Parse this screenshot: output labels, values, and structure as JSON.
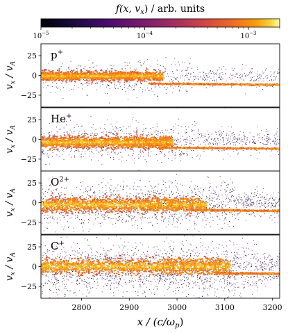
{
  "colorbar": {
    "label": "f(x, v_x) /  arb. units",
    "label_main": "f",
    "label_args": "(x, v",
    "label_sub": "x",
    "label_tail": ") /  arb. units",
    "scale": "log",
    "range": [
      1e-05,
      0.002
    ],
    "colormap": "inferno",
    "ticks": [
      {
        "value": 1e-05,
        "base": "10",
        "exp": "−5"
      },
      {
        "value": 0.0001,
        "base": "10",
        "exp": "−4"
      },
      {
        "value": 0.001,
        "base": "10",
        "exp": "−3"
      }
    ]
  },
  "chart_data": {
    "type": "heatmap",
    "description_layout": "four stacked phase-space panels sharing x axis",
    "x_axis": {
      "label_main": "x",
      "label_mid": " / (c/ω",
      "label_sub": "p",
      "label_tail": ")",
      "range": [
        2715,
        3215
      ],
      "ticks": [
        "2800",
        "2900",
        "3000",
        "3100",
        "3200"
      ],
      "tick_values": [
        2800,
        2900,
        3000,
        3100,
        3200
      ]
    },
    "y_axis": {
      "label_v": "v",
      "label_vsub": "x",
      "label_mid": " / v",
      "label_asub": "A",
      "range": [
        -40,
        40
      ],
      "ticks": [
        "25",
        "0",
        "−25"
      ],
      "tick_values": [
        25,
        0,
        -25
      ]
    },
    "panels": [
      {
        "species": "p",
        "charge": "+",
        "front_x": 2970,
        "beam_v": -10,
        "upstream_v": 0,
        "spread": 7
      },
      {
        "species": "He",
        "charge": "+",
        "front_x": 2990,
        "beam_v": -10,
        "upstream_v": -3,
        "spread": 9
      },
      {
        "species": "O",
        "charge": "2+",
        "front_x": 3060,
        "beam_v": -9,
        "upstream_v": -2,
        "spread": 11
      },
      {
        "species": "C",
        "charge": "+",
        "front_x": 3110,
        "beam_v": -8,
        "upstream_v": 1,
        "spread": 12
      }
    ]
  }
}
